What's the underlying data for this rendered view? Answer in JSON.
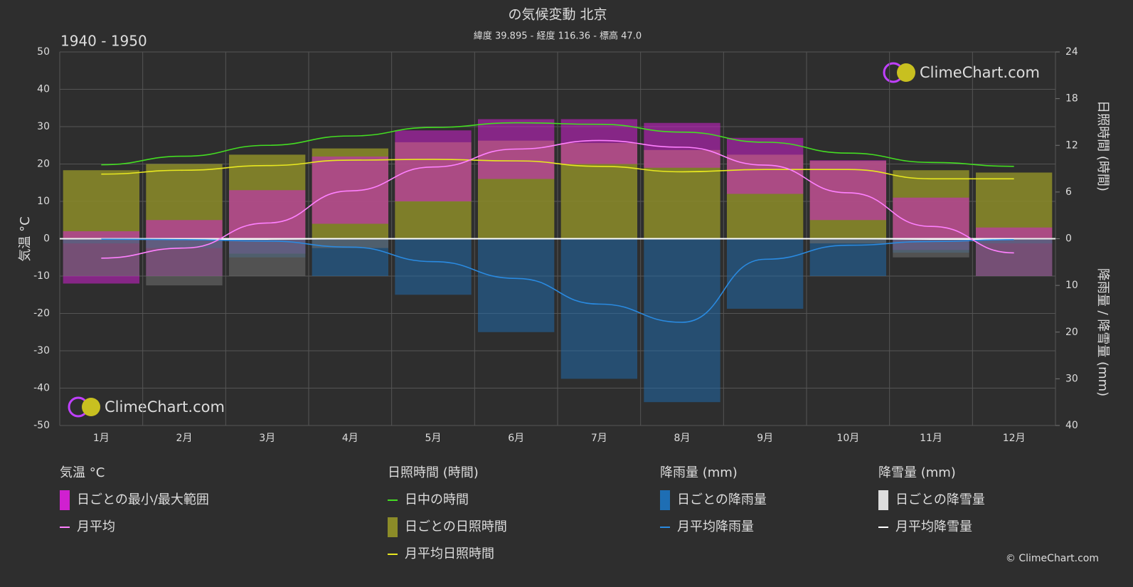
{
  "chart_data": {
    "type": "climate",
    "title": "の気候変動 北京",
    "subtitle": "緯度 39.895 - 経度 116.36 - 標高 47.0",
    "period": "1940 - 1950",
    "logo": "ClimeChart.com",
    "copyright": "© ClimeChart.com",
    "ylabel": "気温 °C",
    "y2label": "日照時間 (時間)",
    "y3label": "降雨量 / 降雪量 (mm)",
    "categories": [
      "1月",
      "2月",
      "3月",
      "4月",
      "5月",
      "6月",
      "7月",
      "8月",
      "9月",
      "10月",
      "11月",
      "12月"
    ],
    "ylim": [
      -50,
      50
    ],
    "yticks": [
      -50,
      -40,
      -30,
      -20,
      -10,
      0,
      10,
      20,
      30,
      40,
      50
    ],
    "y2lim": [
      0,
      24
    ],
    "y2ticks": [
      0,
      6,
      12,
      18,
      24
    ],
    "y3lim": [
      0,
      40
    ],
    "y3ticks": [
      10,
      20,
      30,
      40
    ],
    "grid": true,
    "legend_titles": [
      "気温 °C",
      "日照時間 (時間)",
      "降雨量 (mm)",
      "降雪量 (mm)"
    ],
    "series": [
      {
        "name": "日ごとの最小/最大範囲",
        "color": "#d020d0",
        "axis": "y",
        "low": [
          -12,
          -10,
          -4,
          4,
          10,
          16,
          20,
          19,
          12,
          5,
          -3,
          -10
        ],
        "high": [
          2,
          5,
          13,
          22,
          29,
          32,
          32,
          31,
          27,
          21,
          11,
          3
        ]
      },
      {
        "name": "月平均",
        "color": "#ff80ff",
        "axis": "y",
        "values": [
          -5.2,
          -2.5,
          4.2,
          12.8,
          19.2,
          24,
          26.3,
          24.5,
          19.7,
          12.3,
          3.3,
          -3.8
        ]
      },
      {
        "name": "日中の時間",
        "color": "#44dd22",
        "axis": "y2",
        "values": [
          9.5,
          10.6,
          12.0,
          13.2,
          14.3,
          14.9,
          14.7,
          13.7,
          12.4,
          11.0,
          9.8,
          9.3
        ]
      },
      {
        "name": "日ごとの日照時間",
        "color": "#8c8c28",
        "axis": "y2",
        "values": [
          8.8,
          9.6,
          10.8,
          11.6,
          12.4,
          12.6,
          12.3,
          11.4,
          10.8,
          10.0,
          8.8,
          8.5
        ]
      },
      {
        "name": "月平均日照時間",
        "color": "#e8e820",
        "axis": "y2",
        "values": [
          8.3,
          8.8,
          9.4,
          10.1,
          10.2,
          10.0,
          9.3,
          8.6,
          8.9,
          8.9,
          7.7,
          7.7
        ]
      },
      {
        "name": "日ごとの降雨量",
        "color": "#1e6eb4",
        "axis": "y3",
        "values": [
          1,
          2,
          4,
          8,
          12,
          20,
          30,
          35,
          15,
          8,
          3,
          1
        ]
      },
      {
        "name": "月平均降雨量",
        "color": "#2a8ae0",
        "axis": "y3",
        "values": [
          0.1,
          0.2,
          0.5,
          1.8,
          4.9,
          8.5,
          14,
          17.9,
          4.4,
          1.4,
          0.6,
          0.2
        ]
      },
      {
        "name": "日ごとの降雪量",
        "color": "#6a6a6a",
        "axis": "y3",
        "values": [
          8,
          10,
          8,
          2,
          0,
          0,
          0,
          0,
          0,
          1,
          4,
          8
        ]
      },
      {
        "name": "月平均降雪量",
        "color": "#ffffff",
        "axis": "y3",
        "values": [
          0.1,
          0.1,
          0.1,
          0,
          0,
          0,
          0,
          0,
          0,
          0,
          0.1,
          0.1
        ]
      }
    ]
  }
}
